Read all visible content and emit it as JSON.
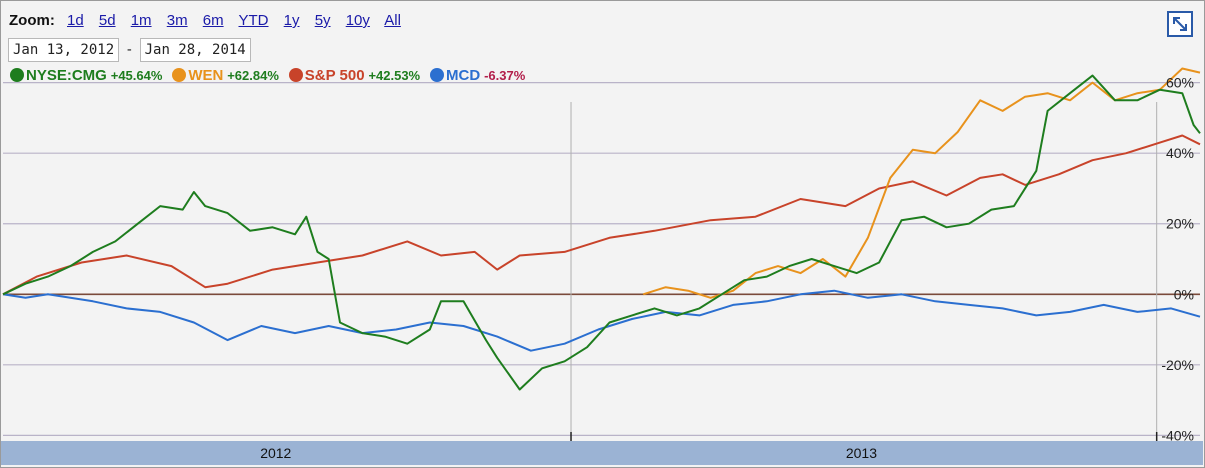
{
  "toolbar": {
    "zoom_label": "Zoom:",
    "zoom_options": [
      "1d",
      "5d",
      "1m",
      "3m",
      "6m",
      "YTD",
      "1y",
      "5y",
      "10y",
      "All"
    ]
  },
  "date_range": {
    "start": "Jan 13, 2012",
    "separator": "-",
    "end": "Jan 28, 2014"
  },
  "legend": [
    {
      "name": "NYSE:CMG",
      "change": "+45.64%",
      "color": "#1e7d1e",
      "change_color": "#1e7d1e"
    },
    {
      "name": "WEN",
      "change": "+62.84%",
      "color": "#e8921c",
      "change_color": "#1e7d1e"
    },
    {
      "name": "S&P 500",
      "change": "+42.53%",
      "color": "#c8432a",
      "change_color": "#1e7d1e"
    },
    {
      "name": "MCD",
      "change": "-6.37%",
      "color": "#2b6fd0",
      "change_color": "#b21e4a"
    }
  ],
  "icons": {
    "expand": "expand-icon"
  },
  "chart_data": {
    "type": "line",
    "xlabel": "",
    "ylabel": "",
    "x_range": [
      "2012-01-13",
      "2014-01-28"
    ],
    "ylim": [
      -45,
      65
    ],
    "y_ticks": [
      {
        "value": 60,
        "label": "60%"
      },
      {
        "value": 40,
        "label": "40%"
      },
      {
        "value": 20,
        "label": "20%"
      },
      {
        "value": 0,
        "label": "0%"
      },
      {
        "value": -20,
        "label": "-20%"
      },
      {
        "value": -40,
        "label": "-40%"
      }
    ],
    "x_tick_labels": [
      {
        "date": "2012-07-01",
        "label": "2012"
      },
      {
        "date": "2013-07-01",
        "label": "2013"
      }
    ],
    "year_dividers": [
      "2013-01-01",
      "2014-01-01"
    ],
    "series": [
      {
        "name": "NYSE:CMG",
        "color": "#1e7d1e",
        "points": [
          [
            "2012-01-13",
            0
          ],
          [
            "2012-01-27",
            3
          ],
          [
            "2012-02-10",
            5
          ],
          [
            "2012-02-24",
            8
          ],
          [
            "2012-03-09",
            12
          ],
          [
            "2012-03-23",
            15
          ],
          [
            "2012-04-06",
            20
          ],
          [
            "2012-04-20",
            25
          ],
          [
            "2012-05-04",
            24
          ],
          [
            "2012-05-11",
            29
          ],
          [
            "2012-05-18",
            25
          ],
          [
            "2012-06-01",
            23
          ],
          [
            "2012-06-15",
            18
          ],
          [
            "2012-06-29",
            19
          ],
          [
            "2012-07-13",
            17
          ],
          [
            "2012-07-20",
            22
          ],
          [
            "2012-07-27",
            12
          ],
          [
            "2012-08-03",
            10
          ],
          [
            "2012-08-10",
            -8
          ],
          [
            "2012-08-24",
            -11
          ],
          [
            "2012-09-07",
            -12
          ],
          [
            "2012-09-21",
            -14
          ],
          [
            "2012-10-05",
            -10
          ],
          [
            "2012-10-12",
            -2
          ],
          [
            "2012-10-26",
            -2
          ],
          [
            "2012-11-09",
            -13
          ],
          [
            "2012-11-16",
            -18
          ],
          [
            "2012-11-30",
            -27
          ],
          [
            "2012-12-14",
            -21
          ],
          [
            "2012-12-28",
            -19
          ],
          [
            "2013-01-11",
            -15
          ],
          [
            "2013-01-25",
            -8
          ],
          [
            "2013-02-08",
            -6
          ],
          [
            "2013-02-22",
            -4
          ],
          [
            "2013-03-08",
            -6
          ],
          [
            "2013-03-22",
            -4
          ],
          [
            "2013-04-05",
            0
          ],
          [
            "2013-04-19",
            4
          ],
          [
            "2013-05-03",
            5
          ],
          [
            "2013-05-17",
            8
          ],
          [
            "2013-05-31",
            10
          ],
          [
            "2013-06-14",
            8
          ],
          [
            "2013-06-28",
            6
          ],
          [
            "2013-07-12",
            9
          ],
          [
            "2013-07-26",
            21
          ],
          [
            "2013-08-09",
            22
          ],
          [
            "2013-08-23",
            19
          ],
          [
            "2013-09-06",
            20
          ],
          [
            "2013-09-20",
            24
          ],
          [
            "2013-10-04",
            25
          ],
          [
            "2013-10-18",
            35
          ],
          [
            "2013-10-25",
            52
          ],
          [
            "2013-11-08",
            57
          ],
          [
            "2013-11-22",
            62
          ],
          [
            "2013-12-06",
            55
          ],
          [
            "2013-12-20",
            55
          ],
          [
            "2014-01-03",
            58
          ],
          [
            "2014-01-17",
            57
          ],
          [
            "2014-01-24",
            48
          ],
          [
            "2014-01-28",
            45.64
          ]
        ]
      },
      {
        "name": "WEN",
        "color": "#e8921c",
        "points": [
          [
            "2013-02-15",
            0
          ],
          [
            "2013-03-01",
            2
          ],
          [
            "2013-03-15",
            1
          ],
          [
            "2013-03-29",
            -1
          ],
          [
            "2013-04-12",
            1
          ],
          [
            "2013-04-26",
            6
          ],
          [
            "2013-05-10",
            8
          ],
          [
            "2013-05-24",
            6
          ],
          [
            "2013-06-07",
            10
          ],
          [
            "2013-06-21",
            5
          ],
          [
            "2013-07-05",
            16
          ],
          [
            "2013-07-19",
            33
          ],
          [
            "2013-08-02",
            41
          ],
          [
            "2013-08-16",
            40
          ],
          [
            "2013-08-30",
            46
          ],
          [
            "2013-09-13",
            55
          ],
          [
            "2013-09-27",
            52
          ],
          [
            "2013-10-11",
            56
          ],
          [
            "2013-10-25",
            57
          ],
          [
            "2013-11-08",
            55
          ],
          [
            "2013-11-22",
            60
          ],
          [
            "2013-12-06",
            55
          ],
          [
            "2013-12-20",
            57
          ],
          [
            "2014-01-03",
            58
          ],
          [
            "2014-01-17",
            64
          ],
          [
            "2014-01-28",
            62.84
          ]
        ]
      },
      {
        "name": "S&P 500",
        "color": "#c8432a",
        "points": [
          [
            "2012-01-13",
            0
          ],
          [
            "2012-02-03",
            5
          ],
          [
            "2012-03-02",
            9
          ],
          [
            "2012-03-30",
            11
          ],
          [
            "2012-04-27",
            8
          ],
          [
            "2012-05-18",
            2
          ],
          [
            "2012-06-01",
            3
          ],
          [
            "2012-06-29",
            7
          ],
          [
            "2012-07-27",
            9
          ],
          [
            "2012-08-24",
            11
          ],
          [
            "2012-09-21",
            15
          ],
          [
            "2012-10-12",
            11
          ],
          [
            "2012-11-02",
            12
          ],
          [
            "2012-11-16",
            7
          ],
          [
            "2012-11-30",
            11
          ],
          [
            "2012-12-28",
            12
          ],
          [
            "2013-01-25",
            16
          ],
          [
            "2013-02-22",
            18
          ],
          [
            "2013-03-29",
            21
          ],
          [
            "2013-04-26",
            22
          ],
          [
            "2013-05-24",
            27
          ],
          [
            "2013-06-21",
            25
          ],
          [
            "2013-07-12",
            30
          ],
          [
            "2013-08-02",
            32
          ],
          [
            "2013-08-23",
            28
          ],
          [
            "2013-09-13",
            33
          ],
          [
            "2013-09-27",
            34
          ],
          [
            "2013-10-11",
            31
          ],
          [
            "2013-11-01",
            34
          ],
          [
            "2013-11-22",
            38
          ],
          [
            "2013-12-13",
            40
          ],
          [
            "2014-01-03",
            43
          ],
          [
            "2014-01-17",
            45
          ],
          [
            "2014-01-28",
            42.53
          ]
        ]
      },
      {
        "name": "MCD",
        "color": "#2b6fd0",
        "points": [
          [
            "2012-01-13",
            0
          ],
          [
            "2012-01-27",
            -1
          ],
          [
            "2012-02-10",
            0
          ],
          [
            "2012-03-09",
            -2
          ],
          [
            "2012-03-30",
            -4
          ],
          [
            "2012-04-20",
            -5
          ],
          [
            "2012-05-11",
            -8
          ],
          [
            "2012-06-01",
            -13
          ],
          [
            "2012-06-22",
            -9
          ],
          [
            "2012-07-13",
            -11
          ],
          [
            "2012-08-03",
            -9
          ],
          [
            "2012-08-24",
            -11
          ],
          [
            "2012-09-14",
            -10
          ],
          [
            "2012-10-05",
            -8
          ],
          [
            "2012-10-26",
            -9
          ],
          [
            "2012-11-16",
            -12
          ],
          [
            "2012-12-07",
            -16
          ],
          [
            "2012-12-28",
            -14
          ],
          [
            "2013-01-18",
            -10
          ],
          [
            "2013-02-08",
            -7
          ],
          [
            "2013-03-01",
            -5
          ],
          [
            "2013-03-22",
            -6
          ],
          [
            "2013-04-12",
            -3
          ],
          [
            "2013-05-03",
            -2
          ],
          [
            "2013-05-24",
            0
          ],
          [
            "2013-06-14",
            1
          ],
          [
            "2013-07-05",
            -1
          ],
          [
            "2013-07-26",
            0
          ],
          [
            "2013-08-16",
            -2
          ],
          [
            "2013-09-06",
            -3
          ],
          [
            "2013-09-27",
            -4
          ],
          [
            "2013-10-18",
            -6
          ],
          [
            "2013-11-08",
            -5
          ],
          [
            "2013-11-29",
            -3
          ],
          [
            "2013-12-20",
            -5
          ],
          [
            "2014-01-10",
            -4
          ],
          [
            "2014-01-28",
            -6.37
          ]
        ]
      }
    ]
  }
}
